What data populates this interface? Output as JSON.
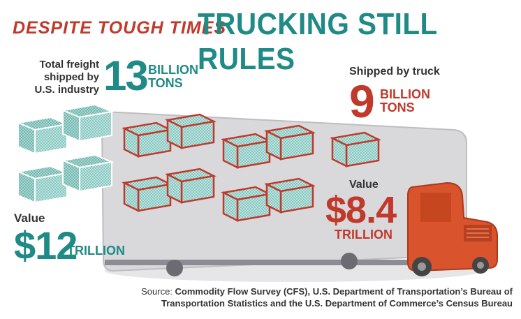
{
  "title": {
    "left": "DESPITE TOUGH TIMES",
    "right": "TRUCKING STILL RULES"
  },
  "total": {
    "label_line1": "Total freight",
    "label_line2": "shipped by",
    "label_line3": "U.S. industry",
    "number": "13",
    "unit_line1": "BILLION",
    "unit_line2": "TONS"
  },
  "truck": {
    "label": "Shipped by truck",
    "number": "9",
    "unit_line1": "BILLION",
    "unit_line2": "TONS"
  },
  "value_total": {
    "label": "Value",
    "number": "$12",
    "unit": "TRILLION"
  },
  "value_truck": {
    "label": "Value",
    "number": "$8.4",
    "unit": "TRILLION"
  },
  "source": {
    "lead": "Source: ",
    "line1": "Commodity Flow Survey (CFS), U.S. Department of Transportation’s Bureau of",
    "line2": "Transportation Statistics and the U.S. Department of Commerce’s Census Bureau"
  },
  "colors": {
    "teal": "#1f8a86",
    "red": "#c0392b",
    "truck_orange": "#d9532c",
    "trailer": "#d9d9dc"
  }
}
